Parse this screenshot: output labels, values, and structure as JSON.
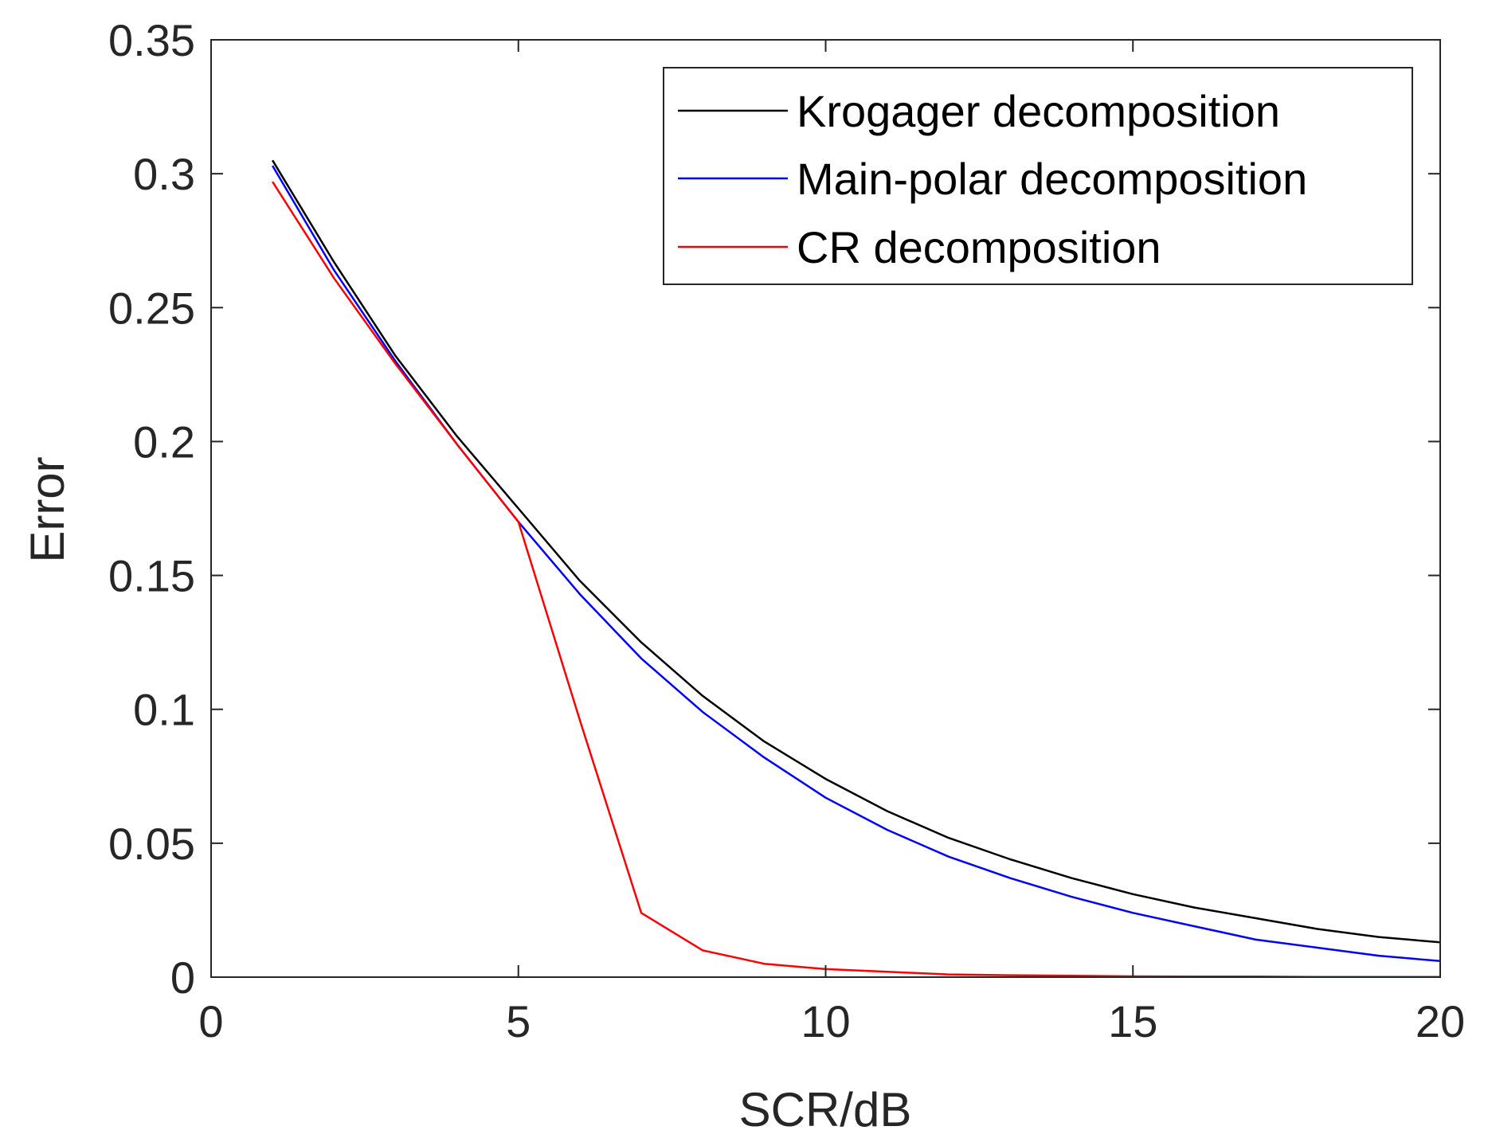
{
  "chart_data": {
    "type": "line",
    "title": "",
    "xlabel": "SCR/dB",
    "ylabel": "Error",
    "xlim": [
      0,
      20
    ],
    "ylim": [
      0,
      0.35
    ],
    "xticks": [
      "0",
      "5",
      "10",
      "15",
      "20"
    ],
    "yticks": [
      "0",
      "0.05",
      "0.1",
      "0.15",
      "0.2",
      "0.25",
      "0.3",
      "0.35"
    ],
    "grid": false,
    "legend_position": "top-right",
    "x": [
      1,
      2,
      3,
      4,
      5,
      6,
      7,
      8,
      9,
      10,
      11,
      12,
      13,
      14,
      15,
      16,
      17,
      18,
      19,
      20
    ],
    "series": [
      {
        "name": "Krogager decomposition",
        "color": "#000000",
        "values": [
          0.305,
          0.267,
          0.232,
          0.202,
          0.175,
          0.148,
          0.125,
          0.105,
          0.088,
          0.074,
          0.062,
          0.052,
          0.044,
          0.037,
          0.031,
          0.026,
          0.022,
          0.018,
          0.015,
          0.013
        ]
      },
      {
        "name": "Main-polar decomposition",
        "color": "#0000ff",
        "values": [
          0.303,
          0.264,
          0.23,
          0.199,
          0.17,
          0.143,
          0.119,
          0.099,
          0.082,
          0.067,
          0.055,
          0.045,
          0.037,
          0.03,
          0.024,
          0.019,
          0.014,
          0.011,
          0.008,
          0.006
        ]
      },
      {
        "name": "CR decomposition",
        "color": "#ff0000",
        "values": [
          0.297,
          0.261,
          0.229,
          0.199,
          0.17,
          0.096,
          0.024,
          0.01,
          0.005,
          0.003,
          0.002,
          0.001,
          0.0007,
          0.0005,
          0.0003,
          0.0002,
          0.0002,
          0.0001,
          0.0001,
          0.0001
        ]
      }
    ]
  }
}
